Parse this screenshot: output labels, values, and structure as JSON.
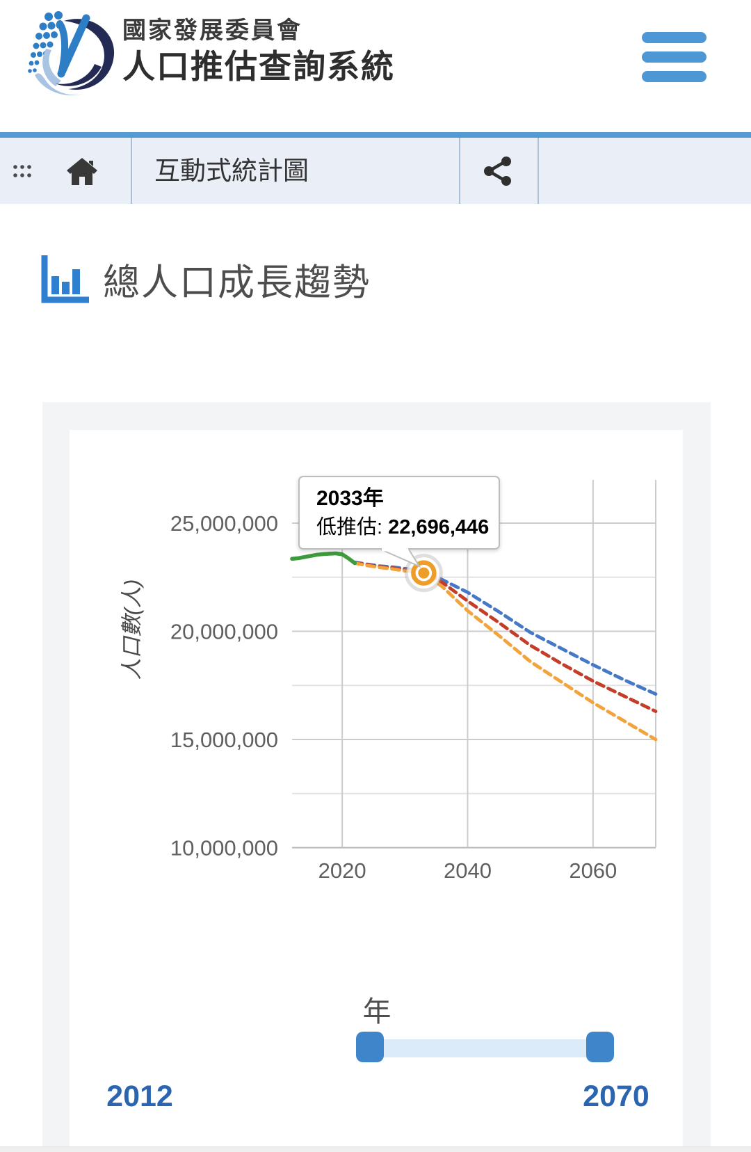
{
  "header": {
    "org_title": "國家發展委員會",
    "app_title": "人口推估查詢系統"
  },
  "breadcrumb": {
    "label": "互動式統計圖"
  },
  "section": {
    "title": "總人口成長趨勢"
  },
  "icons": {
    "logo": "ndc-logo",
    "menu": "hamburger-icon",
    "apps": "grid-dots-icon",
    "home": "home-icon",
    "share": "share-icon",
    "section": "bar-chart-icon"
  },
  "theme": {
    "accent_blue": "#4e97d5",
    "breadcrumb_bg": "#e9eef7",
    "card_bg": "#f3f4f5",
    "slider_handle": "#3e86c9",
    "slider_track": "#dcebfa",
    "range_label_color": "#2b65af"
  },
  "chart_data": {
    "type": "line",
    "ylabel": "人口數(人)",
    "y_tick_values": [
      25000000,
      20000000,
      15000000,
      10000000
    ],
    "y_tick_labels": [
      "25,000,000",
      "20,000,000",
      "15,000,000",
      "10,000,000"
    ],
    "y_minor_values": [
      22500000,
      17500000,
      12500000
    ],
    "x_tick_values": [
      2020,
      2040,
      2060
    ],
    "x_tick_labels": [
      "2020",
      "2040",
      "2060"
    ],
    "x_range": [
      2012,
      2070
    ],
    "grid": true,
    "legend_position": "none",
    "tooltip": {
      "title": "2033年",
      "series_label": "低推估: ",
      "value": "22,696,446"
    },
    "highlighted_point": {
      "series": "low_projection",
      "year": 2033,
      "value": 22696446
    },
    "series": [
      {
        "id": "high_projection",
        "color": "#4678c8",
        "style": "dashed",
        "x": [
          2022,
          2024,
          2026,
          2028,
          2030,
          2033,
          2036,
          2040,
          2045,
          2050,
          2055,
          2060,
          2065,
          2070
        ],
        "values": [
          23190000,
          23100000,
          23020000,
          22970000,
          22900000,
          22800000,
          22380000,
          21800000,
          20900000,
          19950000,
          19200000,
          18450000,
          17750000,
          17100000
        ]
      },
      {
        "id": "medium_projection",
        "color": "#c43d28",
        "style": "dashed",
        "x": [
          2022,
          2024,
          2026,
          2028,
          2030,
          2033,
          2036,
          2040,
          2045,
          2050,
          2055,
          2060,
          2065,
          2070
        ],
        "values": [
          23170000,
          23070000,
          22990000,
          22930000,
          22850000,
          22730000,
          22250000,
          21400000,
          20400000,
          19350000,
          18500000,
          17700000,
          17000000,
          16300000
        ]
      },
      {
        "id": "low_projection",
        "color": "#f2a33c",
        "style": "dashed",
        "x": [
          2022,
          2024,
          2026,
          2028,
          2030,
          2033,
          2036,
          2040,
          2045,
          2050,
          2055,
          2060,
          2065,
          2070
        ],
        "values": [
          23150000,
          23040000,
          22950000,
          22880000,
          22790000,
          22696446,
          22050000,
          20950000,
          19800000,
          18600000,
          17650000,
          16700000,
          15850000,
          15000000
        ]
      },
      {
        "id": "actual",
        "color": "#3e9b3c",
        "style": "solid",
        "x": [
          2012,
          2013,
          2014,
          2015,
          2016,
          2017,
          2018,
          2019,
          2020,
          2021,
          2022
        ],
        "values": [
          23350000,
          23380000,
          23430000,
          23490000,
          23540000,
          23570000,
          23590000,
          23600000,
          23560000,
          23370000,
          23150000
        ]
      }
    ]
  },
  "slider": {
    "label": "年",
    "min_label": "2012",
    "max_label": "2070"
  }
}
